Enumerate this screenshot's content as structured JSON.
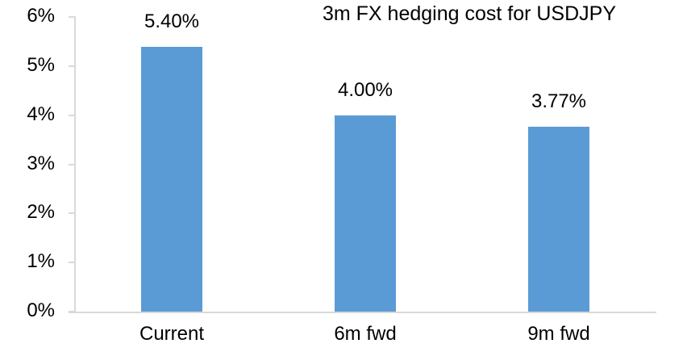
{
  "chart_data": {
    "type": "bar",
    "title": "3m FX hedging cost for USDJPY",
    "categories": [
      "Current",
      "6m fwd",
      "9m fwd"
    ],
    "values": [
      5.4,
      4.0,
      3.77
    ],
    "data_labels": [
      "5.40%",
      "4.00%",
      "3.77%"
    ],
    "y_ticks": [
      {
        "label": "6%",
        "value": 6
      },
      {
        "label": "5%",
        "value": 5
      },
      {
        "label": "4%",
        "value": 4
      },
      {
        "label": "3%",
        "value": 3
      },
      {
        "label": "2%",
        "value": 2
      },
      {
        "label": "1%",
        "value": 1
      },
      {
        "label": "0%",
        "value": 0
      }
    ],
    "ylim": [
      0,
      6
    ],
    "xlabel": "",
    "ylabel": "",
    "grid": false,
    "legend": false,
    "bar_color": "#5B9BD5",
    "axis_color": "#D9D9D9",
    "text_color": "#000000",
    "background_color": "#FFFFFF"
  }
}
